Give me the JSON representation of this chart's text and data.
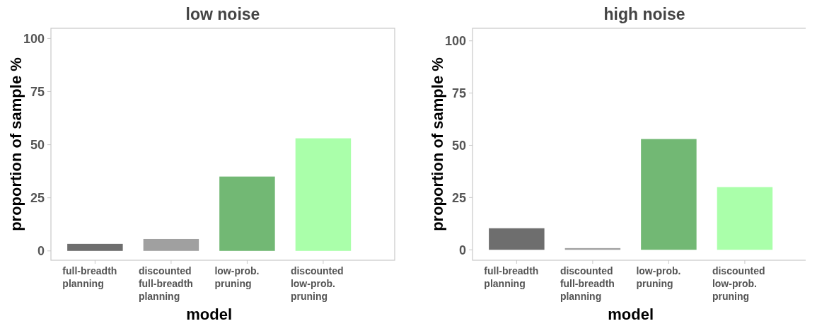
{
  "chart_data": [
    {
      "type": "bar",
      "title": "low noise",
      "xlabel": "model",
      "ylabel": "proportion of sample %",
      "categories": [
        "full-breadth planning",
        "discounted full-breadth planning",
        "low-prob. pruning",
        "discounted low-prob. pruning"
      ],
      "values": [
        3.3,
        5.6,
        35,
        53
      ],
      "colors": [
        "#6e6e6e",
        "#a0a0a0",
        "#72b874",
        "#aaffaa"
      ],
      "ylim": [
        -4.4,
        104.8
      ],
      "yticks": [
        0,
        25,
        50,
        75,
        100
      ],
      "grid": false
    },
    {
      "type": "bar",
      "title": "high noise",
      "xlabel": "model",
      "ylabel": "proportion of sample %",
      "categories": [
        "full-breadth planning",
        "discounted full-breadth planning",
        "low-prob. pruning",
        "discounted low-prob. pruning"
      ],
      "values": [
        10.3,
        0.8,
        53,
        30
      ],
      "colors": [
        "#6e6e6e",
        "#a0a0a0",
        "#72b874",
        "#aaffaa"
      ],
      "ylim": [
        -5,
        106
      ],
      "yticks": [
        0,
        25,
        50,
        75,
        100
      ],
      "grid": false
    }
  ]
}
